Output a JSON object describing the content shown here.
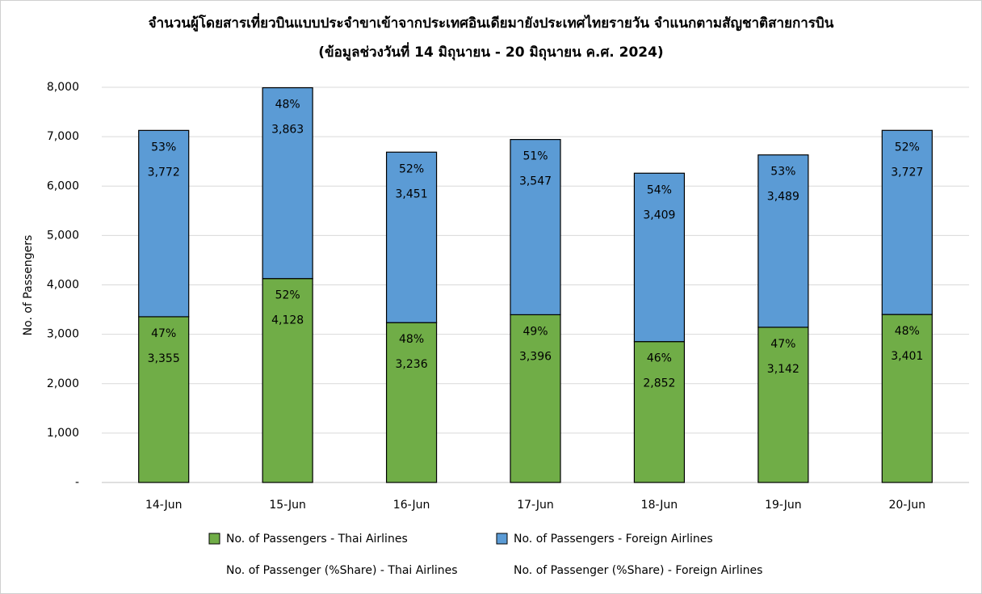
{
  "chart_data": {
    "type": "stacked_bar",
    "title": "จำนวนผู้โดยสารเที่ยวบินแบบประจำขาเข้าจากประเทศอินเดียมายังประเทศไทยรายวัน  จำแนกตามสัญชาติสายการบิน",
    "subtitle": "(ข้อมูลช่วงวันที่ 14 มิถุนายน - 20 มิถุนายน ค.ศ. 2024)",
    "y_label": "No. of Passengers",
    "categories": [
      "14-Jun",
      "15-Jun",
      "16-Jun",
      "17-Jun",
      "18-Jun",
      "19-Jun",
      "20-Jun"
    ],
    "series": [
      {
        "name": "No. of Passengers - Thai Airlines",
        "color": "#70ad47",
        "values": [
          3355,
          4128,
          3236,
          3396,
          2852,
          3142,
          3401
        ],
        "value_labels": [
          "3,355",
          "4,128",
          "3,236",
          "3,396",
          "2,852",
          "3,142",
          "3,401"
        ]
      },
      {
        "name": "No. of Passengers - Foreign Airlines",
        "color": "#5b9bd5",
        "values": [
          3772,
          3863,
          3451,
          3547,
          3409,
          3489,
          3727
        ],
        "value_labels": [
          "3,772",
          "3,863",
          "3,451",
          "3,547",
          "3,409",
          "3,489",
          "3,727"
        ]
      },
      {
        "name": "No. of Passenger (%Share) - Thai Airlines",
        "share_of": 0,
        "values": [
          47,
          52,
          48,
          49,
          46,
          47,
          48
        ],
        "value_labels": [
          "47%",
          "52%",
          "48%",
          "49%",
          "46%",
          "47%",
          "48%"
        ]
      },
      {
        "name": "No. of Passenger (%Share) - Foreign Airlines",
        "share_of": 1,
        "values": [
          53,
          48,
          52,
          51,
          54,
          53,
          52
        ],
        "value_labels": [
          "53%",
          "48%",
          "52%",
          "51%",
          "54%",
          "53%",
          "52%"
        ]
      }
    ],
    "ylim": [
      0,
      8000
    ],
    "yticks": [
      {
        "value": 0,
        "label": "-"
      },
      {
        "value": 1000,
        "label": "1,000"
      },
      {
        "value": 2000,
        "label": "2,000"
      },
      {
        "value": 3000,
        "label": "3,000"
      },
      {
        "value": 4000,
        "label": "4,000"
      },
      {
        "value": 5000,
        "label": "5,000"
      },
      {
        "value": 6000,
        "label": "6,000"
      },
      {
        "value": 7000,
        "label": "7,000"
      },
      {
        "value": 8000,
        "label": "8,000"
      }
    ],
    "grid": true
  }
}
